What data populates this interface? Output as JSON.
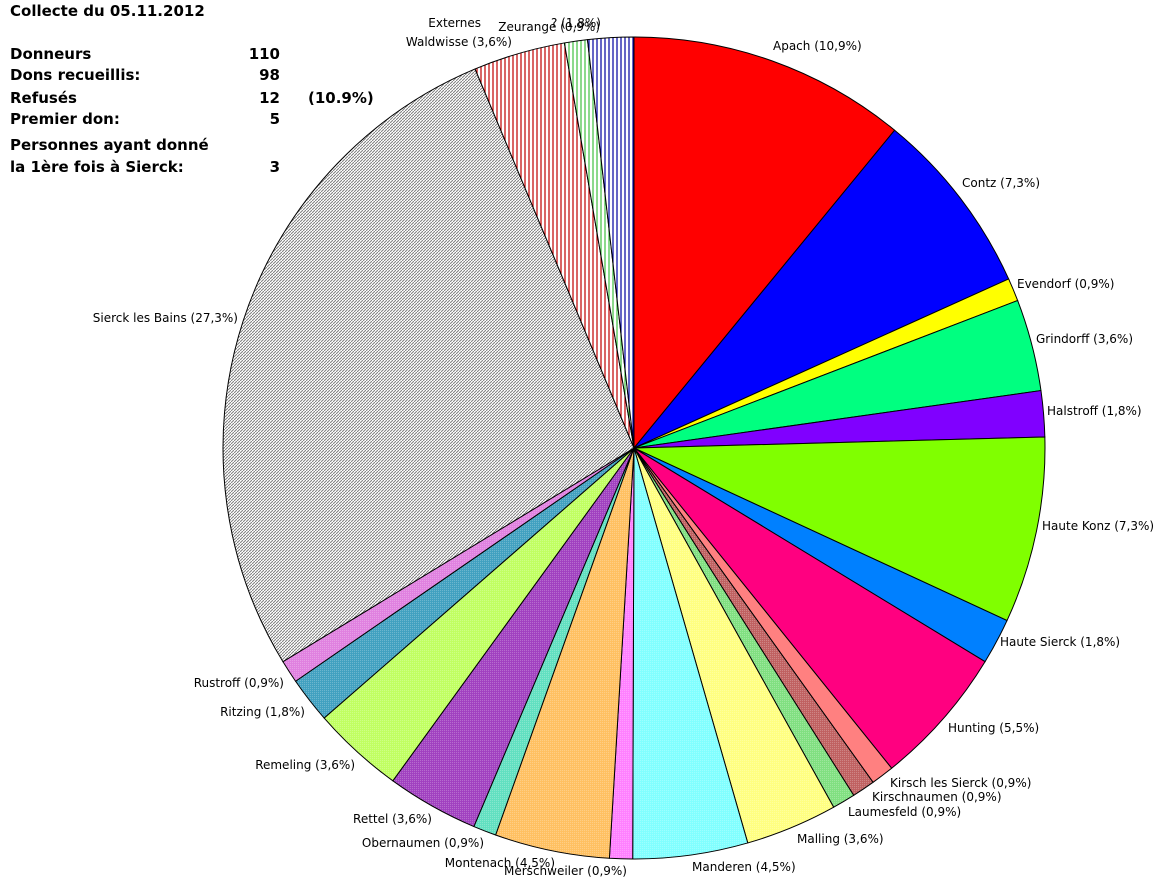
{
  "summary": {
    "title": "Collecte du 05.11.2012",
    "rows": [
      {
        "label": "Donneurs",
        "value": "110",
        "extra": ""
      },
      {
        "label": "Dons recueillis:",
        "value": "98",
        "extra": ""
      },
      {
        "label": "Refusés",
        "value": "12",
        "extra": "(10.9%)"
      },
      {
        "label": "Premier don:",
        "value": "5",
        "extra": ""
      },
      {
        "label": "Personnes ayant donné",
        "value": "",
        "extra": ""
      },
      {
        "label": "la 1ère fois à Sierck:",
        "value": "3",
        "extra": ""
      }
    ]
  },
  "chart_data": {
    "type": "pie",
    "title": "",
    "slices": [
      {
        "label": "Apach (10,9%)",
        "value": 10.9,
        "color": "#ff0000",
        "pattern": "solid"
      },
      {
        "label": "Contz (7,3%)",
        "value": 7.3,
        "color": "#0000ff",
        "pattern": "solid"
      },
      {
        "label": "Evendorf (0,9%)",
        "value": 0.9,
        "color": "#ffff00",
        "pattern": "solid"
      },
      {
        "label": "Grindorff (3,6%)",
        "value": 3.6,
        "color": "#00ff80",
        "pattern": "solid"
      },
      {
        "label": "Halstroff (1,8%)",
        "value": 1.8,
        "color": "#8000ff",
        "pattern": "solid"
      },
      {
        "label": "Haute Konz (7,3%)",
        "value": 7.3,
        "color": "#80ff00",
        "pattern": "solid"
      },
      {
        "label": "Haute Sierck (1,8%)",
        "value": 1.8,
        "color": "#0080ff",
        "pattern": "solid"
      },
      {
        "label": "Hunting (5,5%)",
        "value": 5.5,
        "color": "#ff0080",
        "pattern": "solid"
      },
      {
        "label": "Kirsch les Sierck (0,9%)",
        "value": 0.9,
        "color": "#ff8080",
        "pattern": "solid"
      },
      {
        "label": "Kirschnaumen (0,9%)",
        "value": 0.9,
        "color": "#c06060",
        "pattern": "hatch"
      },
      {
        "label": "Laumesfeld (0,9%)",
        "value": 0.9,
        "color": "#80e080",
        "pattern": "hatch"
      },
      {
        "label": "Malling (3,6%)",
        "value": 3.6,
        "color": "#ffff80",
        "pattern": "hatch"
      },
      {
        "label": "Manderen (4,5%)",
        "value": 4.5,
        "color": "#80ffff",
        "pattern": "hatch"
      },
      {
        "label": "Merschweiler (0,9%)",
        "value": 0.9,
        "color": "#ff80ff",
        "pattern": "hatch"
      },
      {
        "label": "Montenach (4,5%)",
        "value": 4.5,
        "color": "#ffc060",
        "pattern": "hatch"
      },
      {
        "label": "Obernaumen (0,9%)",
        "value": 0.9,
        "color": "#60e0c0",
        "pattern": "hatch"
      },
      {
        "label": "Rettel (3,6%)",
        "value": 3.6,
        "color": "#a040c0",
        "pattern": "hatch"
      },
      {
        "label": "Remeling (3,6%)",
        "value": 3.6,
        "color": "#c0ff60",
        "pattern": "hatch"
      },
      {
        "label": "Ritzing (1,8%)",
        "value": 1.8,
        "color": "#40a0c0",
        "pattern": "hatch"
      },
      {
        "label": "Rustroff (0,9%)",
        "value": 0.9,
        "color": "#e080e0",
        "pattern": "hatch"
      },
      {
        "label": "Sierck les Bains (27,3%)",
        "value": 27.3,
        "color": "#808080",
        "pattern": "diag"
      },
      {
        "label": "Waldwisse (3,6%)",
        "value": 3.6,
        "color": "#c00000",
        "pattern": "vlines"
      },
      {
        "label": "Zeurange (0,9%)",
        "value": 0.9,
        "color": "#40c040",
        "pattern": "vlines"
      },
      {
        "label": "Externes",
        "value": 0.0,
        "color": "#808080",
        "pattern": "vlines"
      },
      {
        "label": "? (1,8%)",
        "value": 1.8,
        "color": "#0000a0",
        "pattern": "vlines"
      }
    ]
  }
}
